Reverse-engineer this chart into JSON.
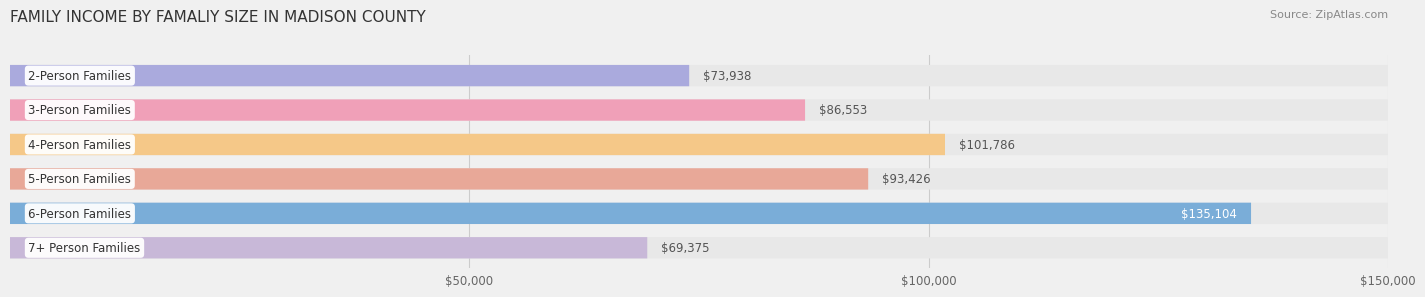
{
  "title": "FAMILY INCOME BY FAMALIY SIZE IN MADISON COUNTY",
  "source": "Source: ZipAtlas.com",
  "categories": [
    "2-Person Families",
    "3-Person Families",
    "4-Person Families",
    "5-Person Families",
    "6-Person Families",
    "7+ Person Families"
  ],
  "values": [
    73938,
    86553,
    101786,
    93426,
    135104,
    69375
  ],
  "bar_colors": [
    "#aaaadd",
    "#f0a0b8",
    "#f5c888",
    "#e8a898",
    "#7aadd8",
    "#c8b8d8"
  ],
  "bar_label_colors": [
    "#555555",
    "#555555",
    "#555555",
    "#555555",
    "#ffffff",
    "#555555"
  ],
  "value_labels": [
    "$73,938",
    "$86,553",
    "$101,786",
    "$93,426",
    "$135,104",
    "$69,375"
  ],
  "xlim": [
    0,
    150000
  ],
  "xticks": [
    0,
    50000,
    100000,
    150000
  ],
  "xtick_labels": [
    "",
    "$50,000",
    "$100,000",
    "$150,000"
  ],
  "background_color": "#f0f0f0",
  "bar_background_color": "#e8e8e8",
  "title_fontsize": 11,
  "source_fontsize": 8,
  "label_fontsize": 8.5,
  "tick_fontsize": 8.5,
  "bar_height": 0.62
}
